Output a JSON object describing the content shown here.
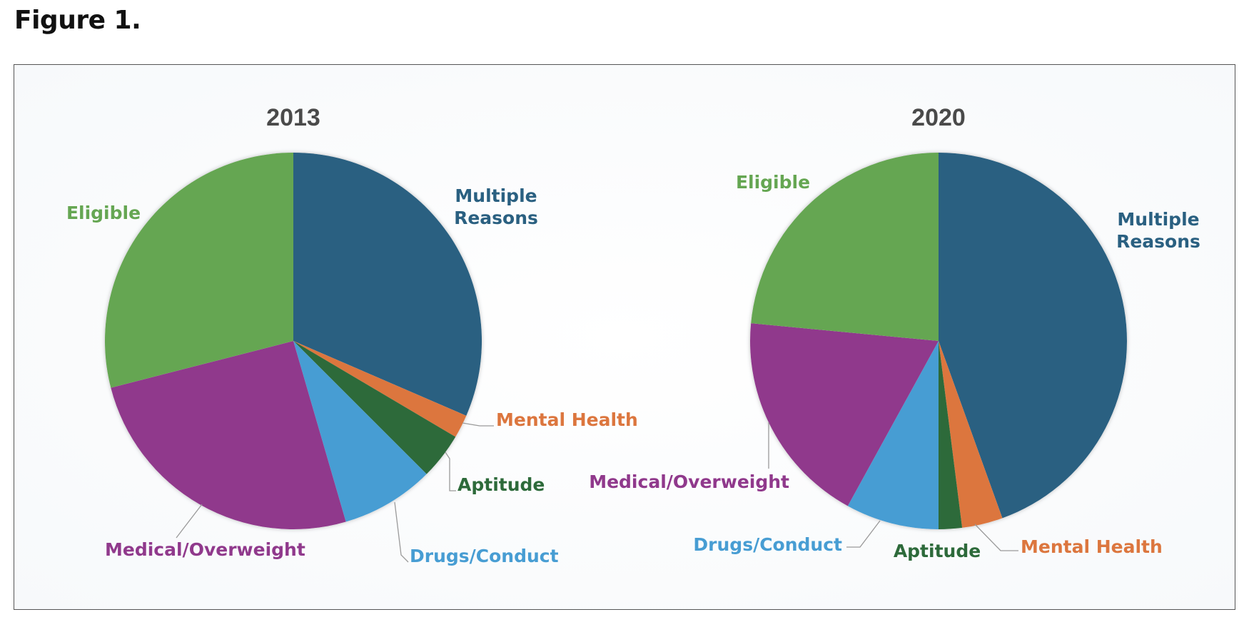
{
  "figure_title": "Figure 1.",
  "colors": {
    "Multiple Reasons": "#2A6081",
    "Mental Health": "#DC763E",
    "Aptitude": "#2D6A3A",
    "Drugs/Conduct": "#479DD3",
    "Medical/Overweight": "#90398C",
    "Eligible": "#65A652"
  },
  "chart_data": [
    {
      "type": "pie",
      "title": "2013",
      "categories": [
        "Multiple Reasons",
        "Mental Health",
        "Aptitude",
        "Drugs/Conduct",
        "Medical/Overweight",
        "Eligible"
      ],
      "values": [
        31.5,
        2.0,
        4.0,
        8.0,
        25.5,
        29.0
      ],
      "labels": [
        "Multiple\nReasons",
        "Mental Health",
        "Aptitude",
        "Drugs/Conduct",
        "Medical/Overweight",
        "Eligible"
      ]
    },
    {
      "type": "pie",
      "title": "2020",
      "categories": [
        "Multiple Reasons",
        "Mental Health",
        "Aptitude",
        "Drugs/Conduct",
        "Medical/Overweight",
        "Eligible"
      ],
      "values": [
        44.5,
        3.5,
        2.0,
        8.0,
        18.5,
        23.5
      ],
      "labels": [
        "Multiple\nReasons",
        "Mental Health",
        "Aptitude",
        "Drugs/Conduct",
        "Medical/Overweight",
        "Eligible"
      ]
    }
  ]
}
